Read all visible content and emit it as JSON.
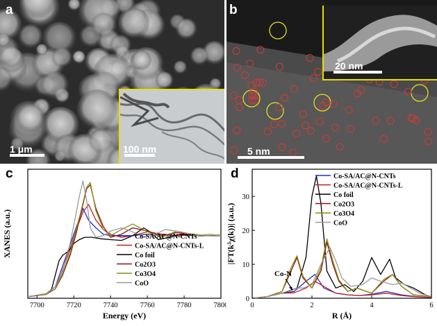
{
  "panels": {
    "a": {
      "label": "a",
      "scale_main": "1 μm",
      "scale_inset": "100 nm"
    },
    "b": {
      "label": "b",
      "scale_main": "5 nm",
      "scale_inset": "20 nm"
    },
    "c": {
      "label": "c"
    },
    "d": {
      "label": "d",
      "annotation": "Co-N"
    }
  },
  "colors": {
    "co_sa_ac_n_cnts": "#1f2bd6",
    "co_sa_ac_n_cnts_l": "#c02020",
    "co_foil": "#000000",
    "co2o3": "#8b1010",
    "co3o4": "#8a8a10",
    "coo": "#999999",
    "inset_border": "#e8e000"
  },
  "chart_data": [
    {
      "type": "line",
      "xlabel": "Energy (eV)",
      "ylabel": "XANES (a.u.)",
      "xlim": [
        7695,
        7800
      ],
      "ylim": [
        0,
        1.65
      ],
      "x_ticks": [
        "7700",
        "7720",
        "7740",
        "7760",
        "7780",
        "7800"
      ],
      "legend": "lower-right",
      "series": [
        {
          "name": "Co-SA/AC@N-CNTs",
          "color": "#1f2bd6",
          "x": [
            7695,
            7705,
            7710,
            7713,
            7716,
            7719,
            7722,
            7725,
            7728,
            7732,
            7736,
            7740,
            7746,
            7752,
            7760,
            7768,
            7776,
            7784,
            7792,
            7800
          ],
          "y": [
            0.02,
            0.05,
            0.15,
            0.35,
            0.55,
            0.75,
            0.95,
            1.15,
            1.0,
            0.9,
            0.82,
            0.8,
            0.8,
            0.8,
            0.82,
            0.82,
            0.8,
            0.81,
            0.8,
            0.8
          ]
        },
        {
          "name": "Co-SA/AC@N-CNTs-L",
          "color": "#c02020",
          "x": [
            7695,
            7705,
            7710,
            7713,
            7716,
            7719,
            7722,
            7725,
            7728,
            7732,
            7736,
            7740,
            7746,
            7752,
            7760,
            7768,
            7776,
            7784,
            7792,
            7800
          ],
          "y": [
            0.02,
            0.05,
            0.12,
            0.3,
            0.5,
            0.7,
            0.92,
            1.1,
            1.2,
            1.0,
            0.88,
            0.82,
            0.78,
            0.8,
            0.85,
            0.82,
            0.8,
            0.81,
            0.8,
            0.8
          ]
        },
        {
          "name": "Co foil",
          "color": "#000000",
          "x": [
            7695,
            7705,
            7708,
            7710,
            7712,
            7714,
            7717,
            7720,
            7723,
            7726,
            7730,
            7735,
            7740,
            7746,
            7752,
            7758,
            7762,
            7766,
            7772,
            7778,
            7786,
            7792,
            7800
          ],
          "y": [
            0.02,
            0.05,
            0.12,
            0.3,
            0.48,
            0.55,
            0.6,
            0.7,
            0.75,
            0.78,
            0.78,
            0.76,
            0.75,
            0.74,
            0.8,
            0.9,
            0.84,
            0.75,
            0.78,
            0.82,
            0.8,
            0.8,
            0.8
          ]
        },
        {
          "name": "Co2O3",
          "color": "#8b1010",
          "x": [
            7695,
            7705,
            7710,
            7714,
            7718,
            7721,
            7724,
            7727,
            7729,
            7732,
            7736,
            7740,
            7746,
            7752,
            7760,
            7768,
            7776,
            7784,
            7792,
            7800
          ],
          "y": [
            0.02,
            0.05,
            0.12,
            0.3,
            0.55,
            0.8,
            1.1,
            1.4,
            1.45,
            1.15,
            0.92,
            0.78,
            0.82,
            0.9,
            0.86,
            0.8,
            0.84,
            0.82,
            0.8,
            0.8
          ]
        },
        {
          "name": "Co3O4",
          "color": "#8a8a10",
          "x": [
            7695,
            7705,
            7710,
            7714,
            7718,
            7721,
            7724,
            7727,
            7729,
            7732,
            7736,
            7740,
            7746,
            7752,
            7760,
            7768,
            7776,
            7784,
            7792,
            7800
          ],
          "y": [
            0.02,
            0.05,
            0.12,
            0.32,
            0.58,
            0.85,
            1.12,
            1.42,
            1.48,
            1.12,
            0.88,
            0.8,
            0.88,
            0.95,
            0.85,
            0.78,
            0.86,
            0.82,
            0.8,
            0.81
          ]
        },
        {
          "name": "CoO",
          "color": "#999999",
          "x": [
            7695,
            7705,
            7710,
            7714,
            7718,
            7721,
            7723,
            7725,
            7727,
            7729,
            7732,
            7736,
            7740,
            7746,
            7752,
            7758,
            7764,
            7770,
            7778,
            7786,
            7794,
            7800
          ],
          "y": [
            0.02,
            0.06,
            0.15,
            0.35,
            0.7,
            1.05,
            1.3,
            1.5,
            1.25,
            0.9,
            0.78,
            0.8,
            0.86,
            0.9,
            0.85,
            0.78,
            0.82,
            0.88,
            0.85,
            0.8,
            0.82,
            0.8
          ]
        }
      ]
    },
    {
      "type": "line",
      "xlabel": "R (Å)",
      "ylabel": "|FT(k³χ(k))| (a.u.)",
      "xlim": [
        0,
        6
      ],
      "ylim": [
        0,
        38
      ],
      "x_ticks": [
        "0",
        "2",
        "4",
        "6"
      ],
      "y_ticks": [
        "0",
        "10",
        "20",
        "30"
      ],
      "legend": "top-right",
      "series": [
        {
          "name": "Co-SA/AC@N-CNTs",
          "color": "#1f2bd6",
          "x": [
            0,
            0.5,
            1.0,
            1.4,
            1.8,
            2.1,
            2.4,
            2.8,
            3.2,
            3.6,
            4.0,
            4.5,
            5.0,
            5.5,
            6.0
          ],
          "y": [
            0,
            0.5,
            1.5,
            2.0,
            5.0,
            7.0,
            3.0,
            1.5,
            1.0,
            0.8,
            1.2,
            2.0,
            1.0,
            0.5,
            0.2
          ]
        },
        {
          "name": "Co-SA/AC@N-CNTs-L",
          "color": "#c02020",
          "x": [
            0,
            0.5,
            1.0,
            1.4,
            1.8,
            2.1,
            2.4,
            2.8,
            3.2,
            3.6,
            4.0,
            4.5,
            5.0,
            5.5,
            6.0
          ],
          "y": [
            0,
            0.5,
            1.5,
            1.6,
            3.0,
            5.0,
            3.5,
            1.5,
            1.0,
            0.8,
            1.0,
            1.5,
            0.8,
            0.4,
            0.2
          ]
        },
        {
          "name": "Co foil",
          "color": "#000000",
          "x": [
            0,
            0.5,
            1.0,
            1.5,
            1.8,
            2.0,
            2.15,
            2.3,
            2.5,
            2.8,
            3.1,
            3.4,
            3.7,
            4.0,
            4.3,
            4.6,
            4.8,
            5.1,
            5.4,
            5.8,
            6.0
          ],
          "y": [
            0,
            0.5,
            1.5,
            3.0,
            12.0,
            30.0,
            36.0,
            28.0,
            8.0,
            3.0,
            4.0,
            2.0,
            5.0,
            12.0,
            7.0,
            11.5,
            6.0,
            4.0,
            3.0,
            1.0,
            0.5
          ]
        },
        {
          "name": "Co2O3",
          "color": "#8b1010",
          "x": [
            0,
            0.5,
            1.0,
            1.3,
            1.5,
            1.7,
            2.0,
            2.3,
            2.5,
            2.7,
            2.9,
            3.2,
            3.5,
            4.0,
            4.4,
            4.7,
            5.0,
            5.4,
            6.0
          ],
          "y": [
            0,
            0.5,
            2.0,
            8.0,
            12.0,
            6.0,
            3.0,
            8.0,
            16.5,
            10.0,
            5.0,
            2.0,
            3.0,
            1.5,
            5.0,
            7.0,
            3.5,
            1.0,
            0.5
          ]
        },
        {
          "name": "Co3O4",
          "color": "#8a8a10",
          "x": [
            0,
            0.5,
            1.0,
            1.3,
            1.5,
            1.7,
            2.0,
            2.3,
            2.5,
            2.7,
            2.9,
            3.2,
            3.5,
            4.0,
            4.4,
            4.7,
            5.0,
            5.4,
            6.0
          ],
          "y": [
            0,
            0.5,
            2.0,
            9.0,
            12.5,
            6.5,
            3.0,
            9.0,
            17.5,
            11.0,
            5.5,
            2.0,
            3.0,
            1.5,
            5.5,
            7.0,
            3.5,
            1.0,
            0.5
          ]
        },
        {
          "name": "CoO",
          "color": "#999999",
          "x": [
            0,
            0.5,
            1.0,
            1.3,
            1.5,
            1.7,
            2.0,
            2.3,
            2.6,
            2.8,
            3.0,
            3.3,
            3.7,
            4.0,
            4.3,
            4.7,
            5.0,
            5.3,
            5.6,
            6.0
          ],
          "y": [
            0,
            0.5,
            1.5,
            2.5,
            3.0,
            3.0,
            4.0,
            10.0,
            15.0,
            11.0,
            6.0,
            3.5,
            4.0,
            6.0,
            5.0,
            4.0,
            4.5,
            3.0,
            1.5,
            0.5
          ]
        }
      ]
    }
  ]
}
